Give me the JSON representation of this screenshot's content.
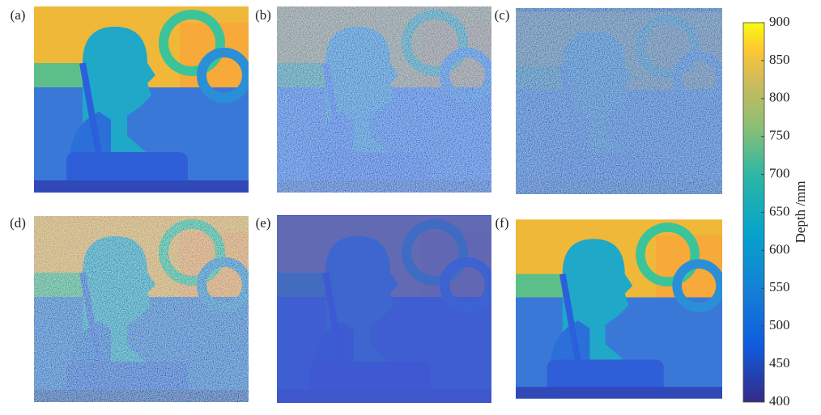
{
  "panels": [
    {
      "label": "(a)"
    },
    {
      "label": "(b)"
    },
    {
      "label": "(c)"
    },
    {
      "label": "(d)"
    },
    {
      "label": "(e)"
    },
    {
      "label": "(f)"
    }
  ],
  "colorbar": {
    "label": "Depth /mm",
    "lim": [
      400,
      900
    ],
    "ticks": [
      400,
      450,
      500,
      550,
      600,
      650,
      700,
      750,
      800,
      850,
      900
    ]
  }
}
